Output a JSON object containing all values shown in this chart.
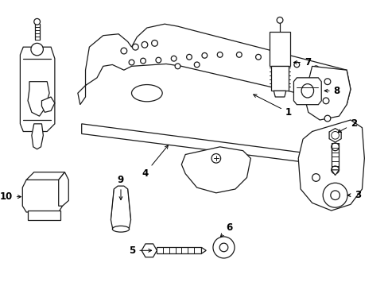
{
  "background_color": "#ffffff",
  "line_color": "#1a1a1a",
  "label_color": "#000000",
  "fig_width": 4.89,
  "fig_height": 3.6,
  "dpi": 100
}
